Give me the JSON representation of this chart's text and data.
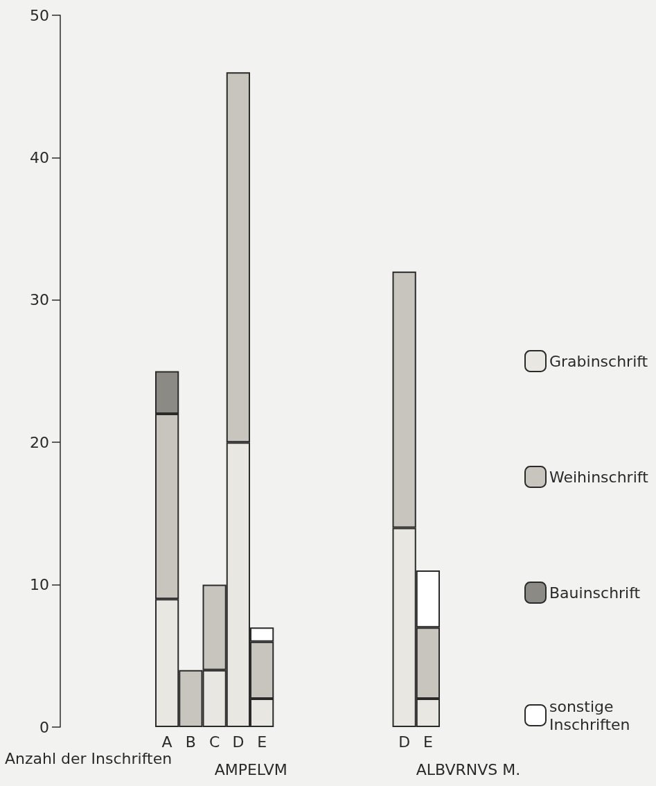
{
  "chart_data": {
    "type": "bar",
    "stacked": true,
    "ylabel": "Anzahl der Inschriften",
    "categories": [
      null,
      null,
      null,
      null,
      "A",
      "B",
      "C",
      "D",
      "E",
      null,
      null,
      null,
      null,
      null,
      "D",
      "E"
    ],
    "series": [
      {
        "name": "Grabinschrift",
        "color": "#e9e7e1",
        "values": [
          null,
          null,
          null,
          null,
          9,
          null,
          4,
          20,
          2,
          null,
          null,
          null,
          null,
          null,
          14,
          2
        ]
      },
      {
        "name": "Weihinschrift",
        "color": "#c8c5be",
        "values": [
          null,
          null,
          null,
          null,
          13,
          4,
          6,
          26,
          4,
          null,
          null,
          null,
          null,
          null,
          18,
          5
        ]
      },
      {
        "name": "Bauinschrift",
        "color": "#8c8a85",
        "values": [
          null,
          null,
          null,
          null,
          3,
          null,
          null,
          null,
          null,
          null,
          null,
          null,
          null,
          null,
          null,
          null
        ]
      },
      {
        "name": "sonstige Inschriften",
        "color": "#ffffff",
        "values": [
          null,
          null,
          null,
          null,
          null,
          null,
          null,
          null,
          1,
          null,
          null,
          null,
          null,
          null,
          null,
          4
        ]
      }
    ],
    "ylim": [
      0,
      50
    ],
    "yticks": [
      0,
      10,
      20,
      30,
      40,
      50
    ],
    "grid": false,
    "legend": "right",
    "annotations": [
      "AMPELVM",
      "ALBVRNVS M."
    ]
  }
}
